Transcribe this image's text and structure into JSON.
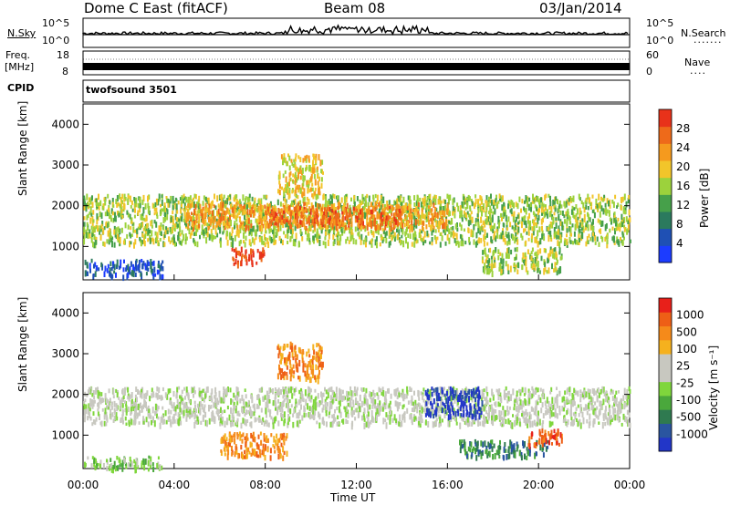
{
  "header": {
    "title": "Dome C East (fitACF)",
    "beam": "Beam 08",
    "date": "03/Jan/2014"
  },
  "strips": {
    "nsky_label": "N.Sky",
    "nsky_ticks": [
      "10^5",
      "10^0"
    ],
    "nsearch_label": "N.Search",
    "nsearch_ticks": [
      "10^5",
      "10^0"
    ],
    "freq_label_line1": "Freq.",
    "freq_label_line2": "[MHz]",
    "freq_ticks": [
      "18",
      "8"
    ],
    "nave_label": "Nave",
    "nave_ticks": [
      "60",
      "0"
    ],
    "cpid_label": "CPID",
    "cpid_value": "twofsound 3501"
  },
  "chart_data": [
    {
      "type": "heatmap",
      "name": "power",
      "ylabel": "Slant Range [km]",
      "ylim": [
        180,
        4500
      ],
      "yticks": [
        "4000",
        "3000",
        "2000",
        "1000"
      ],
      "xlim_hours": [
        0,
        24
      ],
      "colorbar": {
        "label": "Power [dB]",
        "ticks": [
          "28",
          "24",
          "20",
          "16",
          "12",
          "8",
          "4"
        ],
        "colors": [
          "#1c3cff",
          "#1f50b4",
          "#2b7a5e",
          "#46a04a",
          "#9cd23c",
          "#f2c52a",
          "#f59a1e",
          "#ee6a1a",
          "#e8321a"
        ]
      },
      "bands": [
        {
          "r_lo": 1100,
          "r_hi": 2300,
          "t_lo": 0.0,
          "t_hi": 24.0,
          "level": 4
        },
        {
          "r_lo": 1500,
          "r_hi": 2100,
          "t_lo": 4.5,
          "t_hi": 16.0,
          "level": 6
        },
        {
          "r_lo": 1600,
          "r_hi": 2000,
          "t_lo": 8.0,
          "t_hi": 14.0,
          "level": 7
        },
        {
          "r_lo": 600,
          "r_hi": 1000,
          "t_lo": 6.5,
          "t_hi": 8.0,
          "level": 8
        },
        {
          "r_lo": 300,
          "r_hi": 700,
          "t_lo": 0.0,
          "t_hi": 3.5,
          "level": 1
        },
        {
          "r_lo": 2300,
          "r_hi": 3300,
          "t_lo": 8.5,
          "t_hi": 10.5,
          "level": 5
        },
        {
          "r_lo": 400,
          "r_hi": 1000,
          "t_lo": 17.5,
          "t_hi": 21.0,
          "level": 4
        }
      ]
    },
    {
      "type": "heatmap",
      "name": "velocity",
      "ylabel": "Slant Range [km]",
      "ylim": [
        180,
        4500
      ],
      "yticks": [
        "4000",
        "3000",
        "2000",
        "1000"
      ],
      "xlim_hours": [
        0,
        24
      ],
      "xticks": [
        "00:00",
        "04:00",
        "08:00",
        "12:00",
        "16:00",
        "20:00",
        "00:00"
      ],
      "xlabel": "Time UT",
      "colorbar": {
        "label": "Velocity [m s⁻¹]",
        "ticks": [
          "1000",
          "500",
          "100",
          "25",
          "-25",
          "-100",
          "-500",
          "-1000"
        ],
        "colors": [
          "#2236c8",
          "#2a55a0",
          "#2f7a50",
          "#4aa83c",
          "#7fd63c",
          "#c8c8c0",
          "#c8c8c0",
          "#f5b11e",
          "#f58a1a",
          "#ee5f16",
          "#e8201a"
        ]
      },
      "bands": [
        {
          "r_lo": 1300,
          "r_hi": 2200,
          "t_lo": 0.0,
          "t_hi": 24.0,
          "level": 5
        },
        {
          "r_lo": 500,
          "r_hi": 1100,
          "t_lo": 6.0,
          "t_hi": 9.0,
          "level": 8
        },
        {
          "r_lo": 2400,
          "r_hi": 3300,
          "t_lo": 8.5,
          "t_hi": 10.5,
          "level": 8
        },
        {
          "r_lo": 200,
          "r_hi": 500,
          "t_lo": 0.0,
          "t_hi": 3.5,
          "level": 4
        },
        {
          "r_lo": 500,
          "r_hi": 900,
          "t_lo": 16.5,
          "t_hi": 20.5,
          "level": 2
        },
        {
          "r_lo": 1500,
          "r_hi": 2200,
          "t_lo": 15.0,
          "t_hi": 17.5,
          "level": 0
        },
        {
          "r_lo": 800,
          "r_hi": 1200,
          "t_lo": 19.5,
          "t_hi": 21.0,
          "level": 9
        }
      ]
    }
  ]
}
